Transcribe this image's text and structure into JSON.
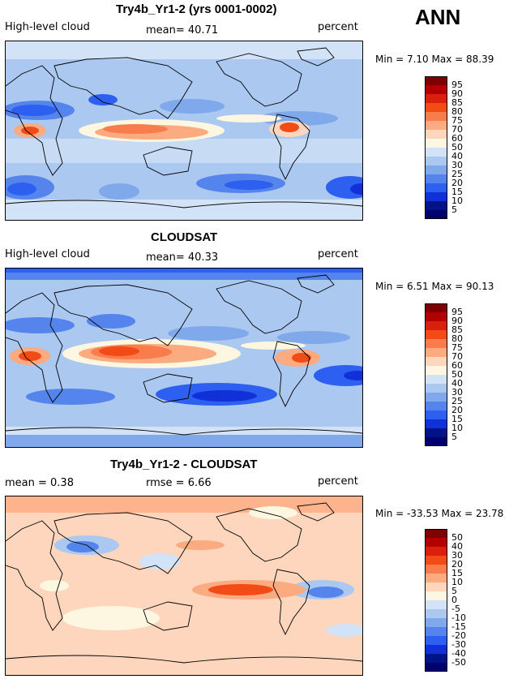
{
  "season": "ANN",
  "chart_data": [
    {
      "type": "heatmap",
      "title": "Try4b_Yr1-2 (yrs 0001-0002)",
      "left_label": "High-level cloud",
      "center_label": "mean=  40.71",
      "units": "percent",
      "min_max": "Min =   7.10 Max =  88.39",
      "min": 7.1,
      "max": 88.39,
      "mean": 40.71,
      "colorbar_levels": [
        "95",
        "90",
        "85",
        "80",
        "75",
        "70",
        "60",
        "50",
        "40",
        "30",
        "25",
        "20",
        "15",
        "10",
        "5"
      ],
      "colorbar_colors": [
        "#7f0000",
        "#b30000",
        "#d8200c",
        "#f24b16",
        "#f87c4c",
        "#fcaa80",
        "#fdd6bd",
        "#fdf6e0",
        "#d3e3f7",
        "#abc8f0",
        "#80a9ec",
        "#5584ec",
        "#2d5ff0",
        "#1030d8",
        "#001488",
        "#00006e"
      ]
    },
    {
      "type": "heatmap",
      "title": "CLOUDSAT",
      "left_label": "High-level cloud",
      "center_label": "mean=  40.33",
      "units": "percent",
      "min_max": "Min =   6.51 Max =  90.13",
      "min": 6.51,
      "max": 90.13,
      "mean": 40.33,
      "colorbar_levels": [
        "95",
        "90",
        "85",
        "80",
        "75",
        "70",
        "60",
        "50",
        "40",
        "30",
        "25",
        "20",
        "15",
        "10",
        "5"
      ],
      "colorbar_colors": [
        "#7f0000",
        "#b30000",
        "#d8200c",
        "#f24b16",
        "#f87c4c",
        "#fcaa80",
        "#fdd6bd",
        "#fdf6e0",
        "#d3e3f7",
        "#abc8f0",
        "#80a9ec",
        "#5584ec",
        "#2d5ff0",
        "#1030d8",
        "#001488",
        "#00006e"
      ]
    },
    {
      "type": "heatmap",
      "title": "Try4b_Yr1-2 - CLOUDSAT",
      "left_label": "mean =   0.38",
      "center_label": "rmse =   6.66",
      "units": "percent",
      "min_max": "Min = -33.53 Max =  23.78",
      "min": -33.53,
      "max": 23.78,
      "mean": 0.38,
      "rmse": 6.66,
      "colorbar_levels": [
        "50",
        "40",
        "30",
        "20",
        "15",
        "10",
        "5",
        "0",
        "-5",
        "-10",
        "-15",
        "-20",
        "-30",
        "-40",
        "-50"
      ],
      "colorbar_colors": [
        "#7f0000",
        "#b30000",
        "#d8200c",
        "#f24b16",
        "#f87c4c",
        "#fcaa80",
        "#fdd6bd",
        "#fdf6e0",
        "#d3e3f7",
        "#abc8f0",
        "#80a9ec",
        "#5584ec",
        "#2d5ff0",
        "#1030d8",
        "#001488",
        "#00006e"
      ]
    }
  ]
}
